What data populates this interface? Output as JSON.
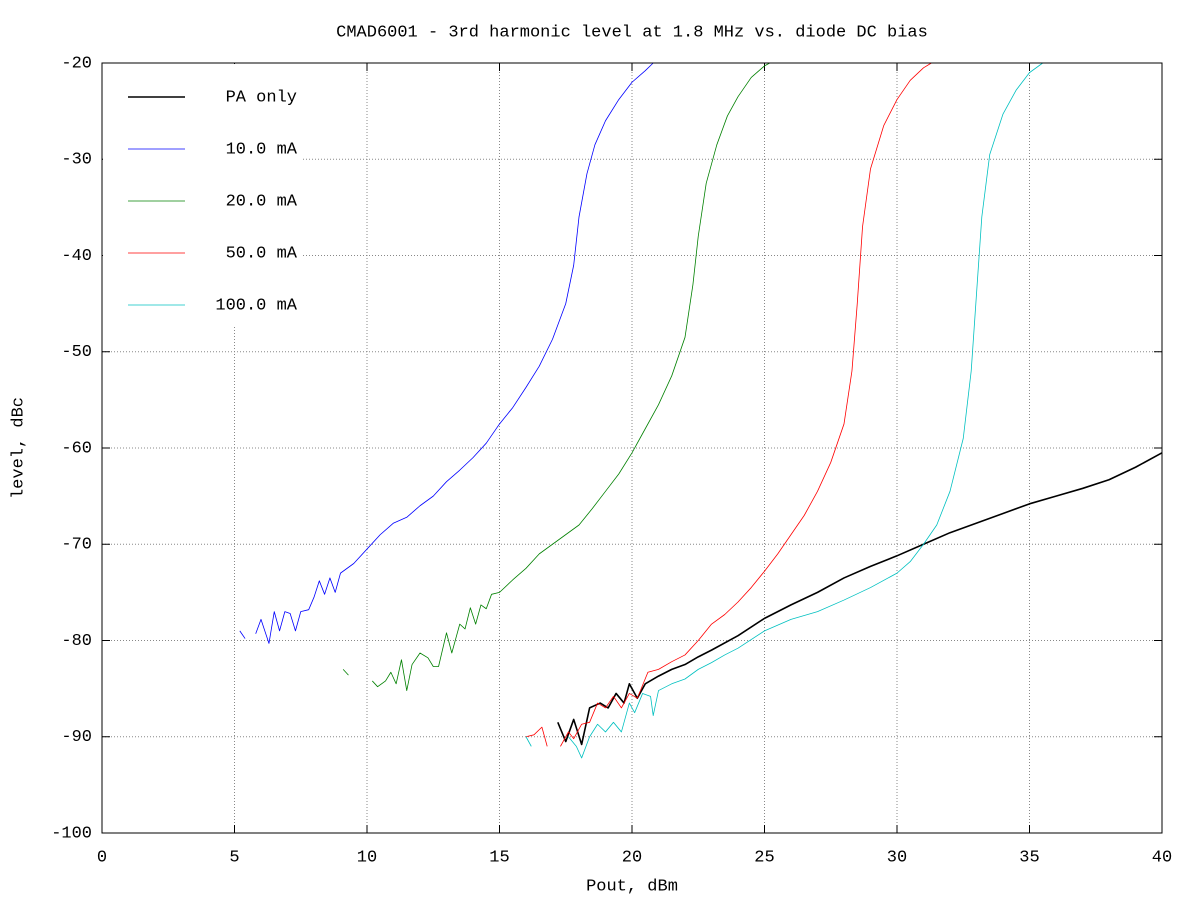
{
  "chart_data": {
    "type": "line",
    "title": "CMAD6001 - 3rd harmonic level at 1.8 MHz vs. diode DC bias",
    "x_label": "Pout, dBm",
    "y_label": "level, dBc",
    "xlim": [
      0,
      40
    ],
    "xticks": [
      0,
      5,
      10,
      15,
      20,
      25,
      30,
      35,
      40
    ],
    "ylim": [
      -100,
      -20
    ],
    "yticks": [
      -100,
      -90,
      -80,
      -70,
      -60,
      -50,
      -40,
      -30,
      -20
    ],
    "grid": true,
    "legend": "top left",
    "series": [
      {
        "name": "PA only",
        "color": "#000000",
        "linewidth": 1.6,
        "x": [
          17.2,
          17.5,
          17.8,
          18.1,
          18.4,
          18.8,
          19.1,
          19.4,
          19.7,
          19.9,
          20.2,
          20.5,
          21,
          21.5,
          22,
          22.5,
          23,
          24,
          25,
          26,
          27,
          28,
          29,
          30,
          31,
          32,
          33,
          34,
          35,
          36,
          37,
          38,
          39,
          40
        ],
        "values": [
          -88.5,
          -90.5,
          -88.2,
          -90.8,
          -87,
          -86.5,
          -87,
          -85.5,
          -86.5,
          -84.5,
          -86,
          -84.5,
          -83.7,
          -83,
          -82.5,
          -81.7,
          -81,
          -79.5,
          -77.7,
          -76.3,
          -75,
          -73.5,
          -72.3,
          -71.2,
          -70,
          -68.8,
          -67.8,
          -66.8,
          -65.8,
          -65,
          -64.2,
          -63.3,
          -62,
          -60.5
        ]
      },
      {
        "name": "10.0 mA",
        "color": "#0000ff",
        "linewidth": 0.8,
        "x": [
          5.2,
          5.4,
          5.6,
          5.8,
          6.0,
          6.3,
          6.5,
          6.7,
          6.9,
          7.1,
          7.3,
          7.5,
          7.8,
          8.0,
          8.2,
          8.4,
          8.6,
          8.8,
          9.0,
          9.5,
          10,
          10.5,
          11,
          11.5,
          12,
          12.5,
          13,
          13.5,
          14,
          14.5,
          15,
          15.5,
          16,
          16.5,
          17,
          17.5,
          17.8,
          18,
          18.3,
          18.6,
          19,
          19.5,
          20,
          20.5,
          20.8
        ],
        "values": [
          -79,
          -79.8,
          null,
          -79.3,
          -77.8,
          -80.3,
          -77,
          -79,
          -77,
          -77.2,
          -79,
          -77,
          -76.8,
          -75.5,
          -73.8,
          -75.2,
          -73.5,
          -75,
          -73,
          -72,
          -70.5,
          -69,
          -67.8,
          -67.2,
          -66,
          -65,
          -63.5,
          -62.3,
          -61,
          -59.5,
          -57.5,
          -55.8,
          -53.7,
          -51.5,
          -48.7,
          -45,
          -41,
          -36,
          -31.5,
          -28.5,
          -26,
          -23.8,
          -22,
          -20.8,
          -20
        ]
      },
      {
        "name": "20.0 mA",
        "color": "#008000",
        "linewidth": 0.8,
        "x": [
          9.1,
          9.3,
          9.8,
          10.2,
          10.4,
          10.7,
          10.9,
          11.1,
          11.3,
          11.5,
          11.7,
          12,
          12.3,
          12.5,
          12.7,
          13,
          13.2,
          13.5,
          13.7,
          13.9,
          14.1,
          14.3,
          14.5,
          14.7,
          15,
          15.5,
          16,
          16.5,
          17,
          17.5,
          18,
          18.5,
          19,
          19.5,
          20,
          20.5,
          21,
          21.5,
          22,
          22.3,
          22.5,
          22.8,
          23.2,
          23.6,
          24,
          24.5,
          25,
          25.2
        ],
        "values": [
          -83,
          -83.6,
          null,
          -84.2,
          -84.8,
          -84.2,
          -83.3,
          -84.5,
          -82,
          -85.2,
          -82.5,
          -81.3,
          -81.8,
          -82.7,
          -82.7,
          -79.2,
          -81.3,
          -78.3,
          -78.8,
          -76.6,
          -78.3,
          -76.3,
          -76.7,
          -75.2,
          -75,
          -73.7,
          -72.5,
          -71,
          -70,
          -69,
          -68,
          -66.3,
          -64.5,
          -62.7,
          -60.5,
          -58,
          -55.5,
          -52.5,
          -48.5,
          -43,
          -38,
          -32.5,
          -28.5,
          -25.5,
          -23.5,
          -21.5,
          -20.3,
          -20
        ]
      },
      {
        "name": "50.0 mA",
        "color": "#ff0000",
        "linewidth": 0.8,
        "x": [
          16,
          16.3,
          16.6,
          16.8,
          17,
          17.3,
          17.6,
          17.8,
          18.1,
          18.4,
          18.7,
          19,
          19.3,
          19.6,
          19.9,
          20.2,
          20.6,
          21,
          21.5,
          22,
          22.5,
          23,
          23.5,
          24,
          24.5,
          25,
          25.5,
          26,
          26.5,
          27,
          27.5,
          28,
          28.3,
          28.5,
          28.7,
          29,
          29.5,
          30,
          30.5,
          31,
          31.3
        ],
        "values": [
          -90,
          -89.8,
          -89,
          -91,
          null,
          -91,
          -89.5,
          -90.2,
          -88.7,
          -88.5,
          -86.5,
          -87,
          -85.8,
          -87,
          -85.5,
          -86,
          -83.3,
          -83,
          -82.2,
          -81.5,
          -80,
          -78.3,
          -77.3,
          -76,
          -74.5,
          -72.8,
          -71,
          -69,
          -67,
          -64.5,
          -61.5,
          -57.5,
          -52,
          -45,
          -37,
          -31,
          -26.5,
          -23.8,
          -21.8,
          -20.5,
          -20
        ]
      },
      {
        "name": "100.0 mA",
        "color": "#00c0c0",
        "linewidth": 0.8,
        "x": [
          16,
          16.2,
          16.5,
          17.6,
          17.9,
          18.1,
          18.4,
          18.7,
          19,
          19.3,
          19.6,
          19.9,
          20.1,
          20.4,
          20.7,
          20.8,
          21,
          21.5,
          22,
          22.5,
          23,
          23.5,
          24,
          25,
          26,
          27,
          28,
          29,
          30,
          30.5,
          31,
          31.5,
          32,
          32.5,
          32.8,
          33,
          33.2,
          33.5,
          34,
          34.5,
          35,
          35.5
        ],
        "values": [
          -90,
          -91,
          null,
          -90,
          -91,
          -92.2,
          -90,
          -88.7,
          -89.5,
          -88.5,
          -89.5,
          -86.5,
          -87.5,
          -85.5,
          -85.8,
          -87.8,
          -85.2,
          -84.5,
          -84,
          -83,
          -82.3,
          -81.5,
          -80.8,
          -79,
          -77.8,
          -77,
          -75.8,
          -74.5,
          -73,
          -71.8,
          -70,
          -68,
          -64.5,
          -59,
          -52,
          -44,
          -36,
          -29.5,
          -25.3,
          -22.8,
          -21,
          -20
        ]
      }
    ]
  }
}
